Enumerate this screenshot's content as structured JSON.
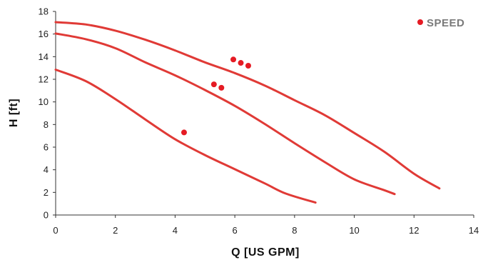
{
  "chart_data": {
    "type": "line",
    "title": "",
    "xlabel": "Q [US GPM]",
    "ylabel": "H [ft]",
    "xlim": [
      0,
      14
    ],
    "ylim": [
      0,
      18
    ],
    "x_ticks": [
      0,
      2,
      4,
      6,
      8,
      10,
      12,
      14
    ],
    "y_ticks": [
      0,
      2,
      4,
      6,
      8,
      10,
      12,
      14,
      16,
      18
    ],
    "grid": false,
    "legend": {
      "position": "top-right",
      "label": "SPEED"
    },
    "colors": {
      "curve": "#e03a36",
      "point": "#e51b24",
      "axis": "#333333",
      "legend_text": "#7a7a7a"
    },
    "series": [
      {
        "kind": "curve",
        "points": [
          [
            0,
            17.05
          ],
          [
            1,
            16.85
          ],
          [
            2,
            16.3
          ],
          [
            3,
            15.5
          ],
          [
            4,
            14.55
          ],
          [
            5,
            13.5
          ],
          [
            6,
            12.55
          ],
          [
            7,
            11.45
          ],
          [
            8,
            10.15
          ],
          [
            9,
            8.85
          ],
          [
            10,
            7.25
          ],
          [
            11,
            5.6
          ],
          [
            12,
            3.65
          ],
          [
            12.85,
            2.35
          ]
        ]
      },
      {
        "kind": "curve",
        "points": [
          [
            0,
            16.05
          ],
          [
            1,
            15.55
          ],
          [
            2,
            14.75
          ],
          [
            3,
            13.5
          ],
          [
            4,
            12.35
          ],
          [
            5,
            11.05
          ],
          [
            6,
            9.65
          ],
          [
            7,
            8.05
          ],
          [
            8,
            6.35
          ],
          [
            9,
            4.7
          ],
          [
            10,
            3.15
          ],
          [
            11,
            2.2
          ],
          [
            11.35,
            1.85
          ]
        ]
      },
      {
        "kind": "curve",
        "points": [
          [
            0,
            12.85
          ],
          [
            1,
            11.85
          ],
          [
            2,
            10.25
          ],
          [
            3,
            8.45
          ],
          [
            4,
            6.7
          ],
          [
            5,
            5.3
          ],
          [
            6,
            4.05
          ],
          [
            7,
            2.8
          ],
          [
            7.7,
            1.9
          ],
          [
            8.7,
            1.1
          ]
        ]
      },
      {
        "kind": "points",
        "points": [
          [
            5.95,
            13.75
          ],
          [
            6.2,
            13.45
          ],
          [
            6.45,
            13.2
          ],
          [
            5.3,
            11.55
          ],
          [
            5.55,
            11.25
          ],
          [
            4.3,
            7.3
          ]
        ]
      }
    ]
  }
}
